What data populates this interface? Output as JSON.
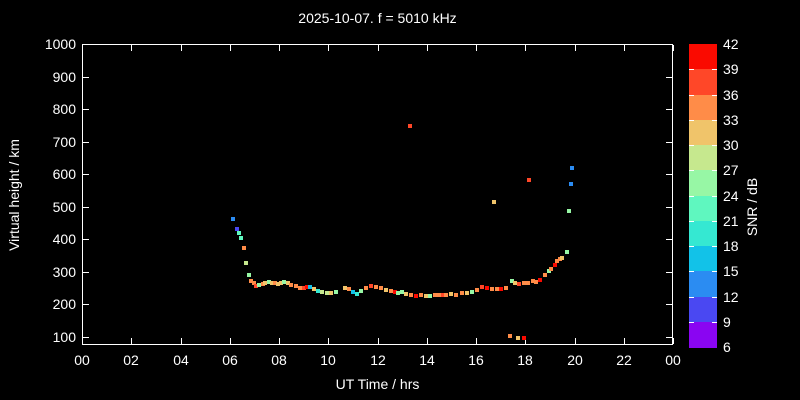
{
  "title": "2025-10-07. f = 5010 kHz",
  "axes": {
    "x_label": "UT Time / hrs",
    "y_label": "Virtual height / km",
    "x_tick_labels": [
      "00",
      "02",
      "04",
      "06",
      "08",
      "10",
      "12",
      "14",
      "16",
      "18",
      "20",
      "22",
      "00"
    ],
    "x_tick_hours": [
      0,
      2,
      4,
      6,
      8,
      10,
      12,
      14,
      16,
      18,
      20,
      22,
      24
    ],
    "y_tick_labels": [
      "100",
      "200",
      "300",
      "400",
      "500",
      "600",
      "700",
      "800",
      "900",
      "1000"
    ],
    "y_tick_km": [
      100,
      200,
      300,
      400,
      500,
      600,
      700,
      800,
      900,
      1000
    ]
  },
  "colorbar": {
    "label": "SNR / dB",
    "tick_labels_top_to_bottom": [
      "42",
      "39",
      "36",
      "33",
      "30",
      "27",
      "24",
      "21",
      "18",
      "15",
      "12",
      "9",
      "6"
    ],
    "min_db": 6,
    "max_db": 42,
    "step_db": 3,
    "colors_low_to_high": [
      "#8a05f2",
      "#4a48f2",
      "#2b8cf2",
      "#12c2e8",
      "#35e8d2",
      "#5ff7bf",
      "#97f7a5",
      "#c6e88e",
      "#f0c46a",
      "#ff8c48",
      "#ff4728",
      "#fa0a00"
    ]
  },
  "colors": {
    "background": "#000000",
    "frame": "#ffffff",
    "text": "#ffffff"
  },
  "chart_data": {
    "type": "scatter",
    "title": "2025-10-07. f = 5010 kHz",
    "xlabel": "UT Time / hrs",
    "ylabel": "Virtual height / km",
    "zlabel": "SNR / dB",
    "xlim": [
      0,
      24
    ],
    "ylim": [
      75,
      1000
    ],
    "zlim": [
      6,
      42
    ],
    "grid": false,
    "points_t_h_snr": [
      [
        6.15,
        462,
        13.5
      ],
      [
        6.28,
        431,
        10.5
      ],
      [
        6.37,
        420,
        22.5
      ],
      [
        6.45,
        404,
        22.5
      ],
      [
        6.58,
        373,
        34.5
      ],
      [
        6.67,
        327,
        28.5
      ],
      [
        6.78,
        290,
        25.5
      ],
      [
        6.88,
        273,
        34.5
      ],
      [
        6.98,
        265,
        34.5
      ],
      [
        7.08,
        257,
        37.5
      ],
      [
        7.2,
        259,
        25.5
      ],
      [
        7.33,
        263,
        34.5
      ],
      [
        7.45,
        266,
        31.5
      ],
      [
        7.58,
        268,
        25.5
      ],
      [
        7.7,
        267,
        31.5
      ],
      [
        7.83,
        265,
        34.5
      ],
      [
        7.95,
        263,
        31.5
      ],
      [
        8.1,
        264,
        31.5
      ],
      [
        8.22,
        268,
        25.5
      ],
      [
        8.35,
        264,
        31.5
      ],
      [
        8.5,
        259,
        34.5
      ],
      [
        8.68,
        255,
        34.5
      ],
      [
        8.85,
        250,
        34.5
      ],
      [
        9.0,
        251,
        37.5
      ],
      [
        9.12,
        253,
        40.5
      ],
      [
        9.27,
        252,
        16.5
      ],
      [
        9.42,
        246,
        31.5
      ],
      [
        9.58,
        241,
        19.5
      ],
      [
        9.75,
        237,
        28.5
      ],
      [
        9.95,
        234,
        28.5
      ],
      [
        10.1,
        234,
        31.5
      ],
      [
        10.3,
        237,
        25.5
      ],
      [
        10.7,
        249,
        31.5
      ],
      [
        10.85,
        248,
        34.5
      ],
      [
        11.0,
        237,
        16.5
      ],
      [
        11.15,
        232,
        19.5
      ],
      [
        11.35,
        241,
        25.5
      ],
      [
        11.55,
        250,
        34.5
      ],
      [
        11.75,
        256,
        37.5
      ],
      [
        11.95,
        254,
        34.5
      ],
      [
        12.15,
        249,
        34.5
      ],
      [
        12.35,
        245,
        31.5
      ],
      [
        12.55,
        241,
        34.5
      ],
      [
        12.7,
        237,
        40.5
      ],
      [
        12.85,
        235,
        25.5
      ],
      [
        13.0,
        238,
        25.5
      ],
      [
        13.15,
        232,
        31.5
      ],
      [
        13.35,
        230,
        34.5
      ],
      [
        13.55,
        227,
        40.5
      ],
      [
        13.75,
        230,
        34.5
      ],
      [
        13.95,
        227,
        31.5
      ],
      [
        14.15,
        225,
        25.5
      ],
      [
        14.35,
        230,
        34.5
      ],
      [
        14.5,
        230,
        34.5
      ],
      [
        14.65,
        229,
        37.5
      ],
      [
        14.8,
        228,
        34.5
      ],
      [
        15.0,
        232,
        31.5
      ],
      [
        15.2,
        230,
        34.5
      ],
      [
        15.45,
        236,
        34.5
      ],
      [
        15.65,
        234,
        31.5
      ],
      [
        15.85,
        238,
        25.5
      ],
      [
        16.05,
        245,
        34.5
      ],
      [
        16.25,
        253,
        37.5
      ],
      [
        16.45,
        250,
        40.5
      ],
      [
        16.65,
        248,
        34.5
      ],
      [
        16.85,
        248,
        34.5
      ],
      [
        17.0,
        246,
        40.5
      ],
      [
        17.2,
        250,
        34.5
      ],
      [
        17.45,
        271,
        25.5
      ],
      [
        17.6,
        267,
        31.5
      ],
      [
        17.75,
        262,
        37.5
      ],
      [
        17.95,
        264,
        34.5
      ],
      [
        18.1,
        266,
        34.5
      ],
      [
        18.3,
        271,
        34.5
      ],
      [
        18.45,
        268,
        34.5
      ],
      [
        18.6,
        276,
        40.5
      ],
      [
        18.8,
        290,
        34.5
      ],
      [
        18.95,
        301,
        25.5
      ],
      [
        19.05,
        310,
        34.5
      ],
      [
        19.2,
        321,
        40.5
      ],
      [
        19.3,
        333,
        34.5
      ],
      [
        19.4,
        340,
        34.5
      ],
      [
        19.5,
        343,
        31.5
      ],
      [
        19.68,
        360,
        25.5
      ],
      [
        13.32,
        747,
        37.5
      ],
      [
        16.75,
        514,
        31.5
      ],
      [
        18.15,
        582,
        37.5
      ],
      [
        19.78,
        487,
        25.5
      ],
      [
        19.85,
        570,
        13.5
      ],
      [
        19.9,
        620,
        13.5
      ],
      [
        17.4,
        103,
        34.5
      ],
      [
        17.7,
        98,
        31.5
      ],
      [
        17.95,
        95,
        40.5
      ]
    ]
  }
}
